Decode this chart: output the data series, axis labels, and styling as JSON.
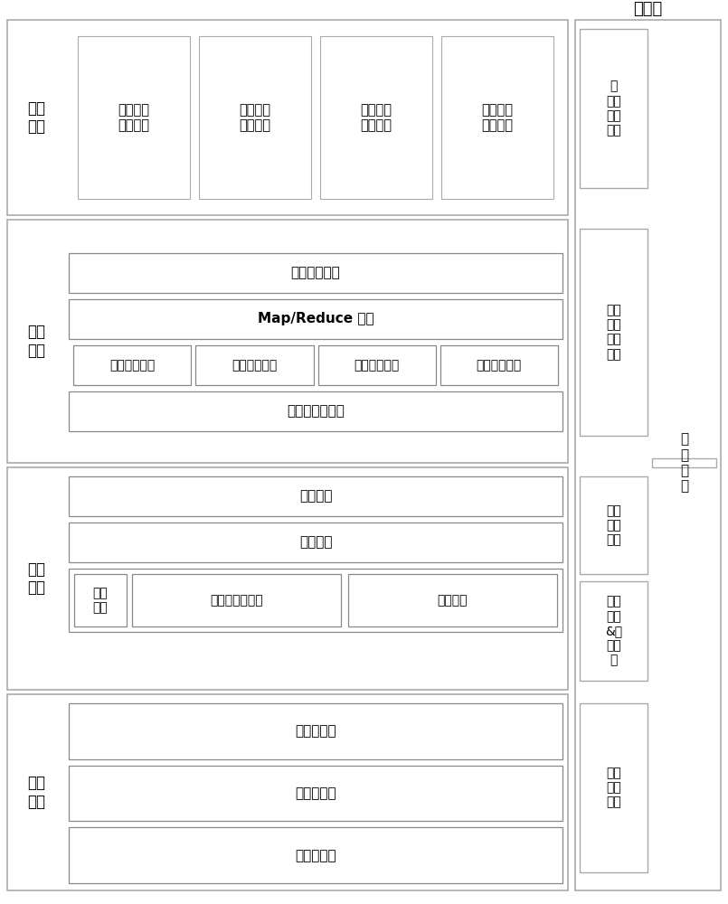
{
  "bg_color": "#ffffff",
  "section_border_color": "#cccccc",
  "section_fill": "#ffffff",
  "inner_border_color": "#888888",
  "inner_fill": "#ffffff",
  "app_box_border": "#aaaaaa",
  "right_panel_border": "#aaaaaa",
  "fig_width": 8.05,
  "fig_height": 10.0,
  "title_yun_anquan": "云安全",
  "app_boxes": [
    "电网管理\n指标分析",
    "电网计划\n指标分析",
    "电网运行\n指标分析",
    "电网模型\n指标分析"
  ],
  "platform_row1": "分析计算引擎",
  "platform_row2": "Map/Reduce 框架",
  "platform_row3": [
    "电网管理数据",
    "电网计划数据",
    "电网运行数据",
    "电网模型数据"
  ],
  "platform_row4": "分布式文件系统",
  "resource_row1": "资源抽象",
  "resource_row2": "虚拟资源",
  "resource_label": "物理\n资源",
  "resource_sub": [
    "物理服务器资源",
    "存储资源"
  ],
  "network_rows": [
    "一级信息网",
    "二级信息网",
    "三级信息网"
  ],
  "right_boxes": [
    "云\n应用\n安全\n服务",
    "统一\n认证\n单点\n登录",
    "虚拟\n环境\n安全",
    "物理\n安全\n&安\n全分\n组",
    "通信\n网络\n安全"
  ],
  "right_tall": "云\n间\n安\n全",
  "section_labels": [
    "应用\n服务",
    "平台\n服务",
    "资源\n管理",
    "信息\n网络"
  ]
}
